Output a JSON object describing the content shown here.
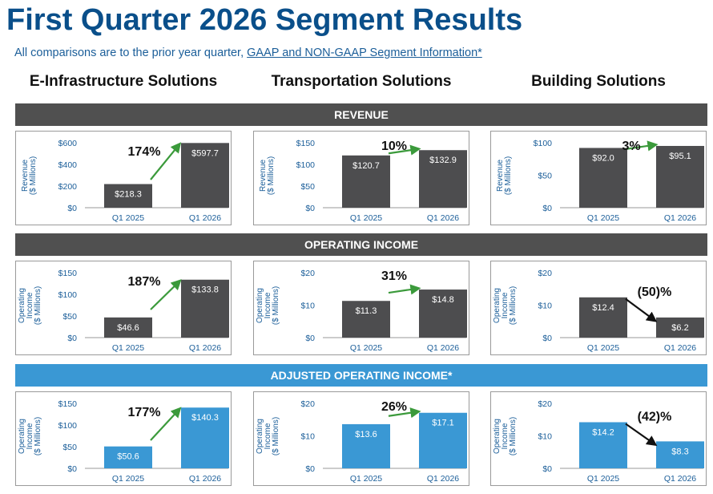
{
  "header": {
    "title": "First Quarter 2026 Segment Results",
    "subtitle_text": "All comparisons are to the prior year quarter, ",
    "subtitle_link": "GAAP and NON-GAAP Segment Information*"
  },
  "columns": [
    "E-Infrastructure Solutions",
    "Transportation Solutions",
    "Building Solutions"
  ],
  "sections": [
    {
      "label": "REVENUE",
      "color": "#505050"
    },
    {
      "label": "OPERATING INCOME",
      "color": "#505050"
    },
    {
      "label": "ADJUSTED OPERATING INCOME*",
      "color": "#3a98d4"
    }
  ],
  "colors": {
    "gray_bar": "#4d4d4f",
    "blue_bar": "#3a98d4",
    "up_arrow": "#3b9a3b",
    "down_arrow": "#111111",
    "axis_text": "#1b5e99"
  },
  "chart_data": [
    {
      "type": "bar",
      "section": "REVENUE",
      "segment": "E-Infrastructure Solutions",
      "categories": [
        "Q1 2025",
        "Q1 2026"
      ],
      "values": [
        218.3,
        597.7
      ],
      "value_labels": [
        "$218.3",
        "$597.7"
      ],
      "change": "174%",
      "direction": "up",
      "ylabel": [
        "Revenue",
        "($ Millions)"
      ],
      "ylim": [
        0,
        600
      ],
      "ticks": [
        {
          "v": 0,
          "label": "$0"
        },
        {
          "v": 200,
          "label": "$200"
        },
        {
          "v": 400,
          "label": "$400"
        },
        {
          "v": 600,
          "label": "$600"
        }
      ],
      "bar_color": "#4d4d4f"
    },
    {
      "type": "bar",
      "section": "REVENUE",
      "segment": "Transportation Solutions",
      "categories": [
        "Q1 2025",
        "Q1 2026"
      ],
      "values": [
        120.7,
        132.9
      ],
      "value_labels": [
        "$120.7",
        "$132.9"
      ],
      "change": "10%",
      "direction": "up",
      "ylabel": [
        "Revenue",
        "($ Millions)"
      ],
      "ylim": [
        0,
        150
      ],
      "ticks": [
        {
          "v": 0,
          "label": "$0"
        },
        {
          "v": 50,
          "label": "$50"
        },
        {
          "v": 100,
          "label": "$100"
        },
        {
          "v": 150,
          "label": "$150"
        }
      ],
      "bar_color": "#4d4d4f"
    },
    {
      "type": "bar",
      "section": "REVENUE",
      "segment": "Building Solutions",
      "categories": [
        "Q1 2025",
        "Q1 2026"
      ],
      "values": [
        92.0,
        95.1
      ],
      "value_labels": [
        "$92.0",
        "$95.1"
      ],
      "change": "3%",
      "direction": "up",
      "ylabel": [
        "Revenue",
        "($ Millions)"
      ],
      "ylim": [
        0,
        100
      ],
      "ticks": [
        {
          "v": 0,
          "label": "$0"
        },
        {
          "v": 50,
          "label": "$50"
        },
        {
          "v": 100,
          "label": "$100"
        }
      ],
      "bar_color": "#4d4d4f"
    },
    {
      "type": "bar",
      "section": "OPERATING INCOME",
      "segment": "E-Infrastructure Solutions",
      "categories": [
        "Q1 2025",
        "Q1 2026"
      ],
      "values": [
        46.6,
        133.8
      ],
      "value_labels": [
        "$46.6",
        "$133.8"
      ],
      "change": "187%",
      "direction": "up",
      "ylabel": [
        "Operating",
        "Income",
        "($ Millions)"
      ],
      "ylim": [
        0,
        150
      ],
      "ticks": [
        {
          "v": 0,
          "label": "$0"
        },
        {
          "v": 50,
          "label": "$50"
        },
        {
          "v": 100,
          "label": "$100"
        },
        {
          "v": 150,
          "label": "$150"
        }
      ],
      "bar_color": "#4d4d4f"
    },
    {
      "type": "bar",
      "section": "OPERATING INCOME",
      "segment": "Transportation Solutions",
      "categories": [
        "Q1 2025",
        "Q1 2026"
      ],
      "values": [
        11.3,
        14.8
      ],
      "value_labels": [
        "$11.3",
        "$14.8"
      ],
      "change": "31%",
      "direction": "up",
      "ylabel": [
        "Operating",
        "Income",
        "($ Millions)"
      ],
      "ylim": [
        0,
        20
      ],
      "ticks": [
        {
          "v": 0,
          "label": "$0"
        },
        {
          "v": 10,
          "label": "$10"
        },
        {
          "v": 20,
          "label": "$20"
        }
      ],
      "bar_color": "#4d4d4f"
    },
    {
      "type": "bar",
      "section": "OPERATING INCOME",
      "segment": "Building Solutions",
      "categories": [
        "Q1 2025",
        "Q1 2026"
      ],
      "values": [
        12.4,
        6.2
      ],
      "value_labels": [
        "$12.4",
        "$6.2"
      ],
      "change": "(50)%",
      "direction": "down",
      "ylabel": [
        "Operating",
        "Income",
        "($ Millions)"
      ],
      "ylim": [
        0,
        20
      ],
      "ticks": [
        {
          "v": 0,
          "label": "$0"
        },
        {
          "v": 10,
          "label": "$10"
        },
        {
          "v": 20,
          "label": "$20"
        }
      ],
      "bar_color": "#4d4d4f"
    },
    {
      "type": "bar",
      "section": "ADJUSTED OPERATING INCOME*",
      "segment": "E-Infrastructure Solutions",
      "categories": [
        "Q1 2025",
        "Q1 2026"
      ],
      "values": [
        50.6,
        140.3
      ],
      "value_labels": [
        "$50.6",
        "$140.3"
      ],
      "change": "177%",
      "direction": "up",
      "ylabel": [
        "Operating",
        "Income",
        "($ Millions)"
      ],
      "ylim": [
        0,
        150
      ],
      "ticks": [
        {
          "v": 0,
          "label": "$0"
        },
        {
          "v": 50,
          "label": "$50"
        },
        {
          "v": 100,
          "label": "$100"
        },
        {
          "v": 150,
          "label": "$150"
        }
      ],
      "bar_color": "#3a98d4"
    },
    {
      "type": "bar",
      "section": "ADJUSTED OPERATING INCOME*",
      "segment": "Transportation Solutions",
      "categories": [
        "Q1 2025",
        "Q1 2026"
      ],
      "values": [
        13.6,
        17.1
      ],
      "value_labels": [
        "$13.6",
        "$17.1"
      ],
      "change": "26%",
      "direction": "up",
      "ylabel": [
        "Operating",
        "Income",
        "($ Millions)"
      ],
      "ylim": [
        0,
        20
      ],
      "ticks": [
        {
          "v": 0,
          "label": "$0"
        },
        {
          "v": 10,
          "label": "$10"
        },
        {
          "v": 20,
          "label": "$20"
        }
      ],
      "bar_color": "#3a98d4"
    },
    {
      "type": "bar",
      "section": "ADJUSTED OPERATING INCOME*",
      "segment": "Building Solutions",
      "categories": [
        "Q1 2025",
        "Q1 2026"
      ],
      "values": [
        14.2,
        8.3
      ],
      "value_labels": [
        "$14.2",
        "$8.3"
      ],
      "change": "(42)%",
      "direction": "down",
      "ylabel": [
        "Operating",
        "Income",
        "($ Millions)"
      ],
      "ylim": [
        0,
        20
      ],
      "ticks": [
        {
          "v": 0,
          "label": "$0"
        },
        {
          "v": 10,
          "label": "$10"
        },
        {
          "v": 20,
          "label": "$20"
        }
      ],
      "bar_color": "#3a98d4"
    }
  ]
}
